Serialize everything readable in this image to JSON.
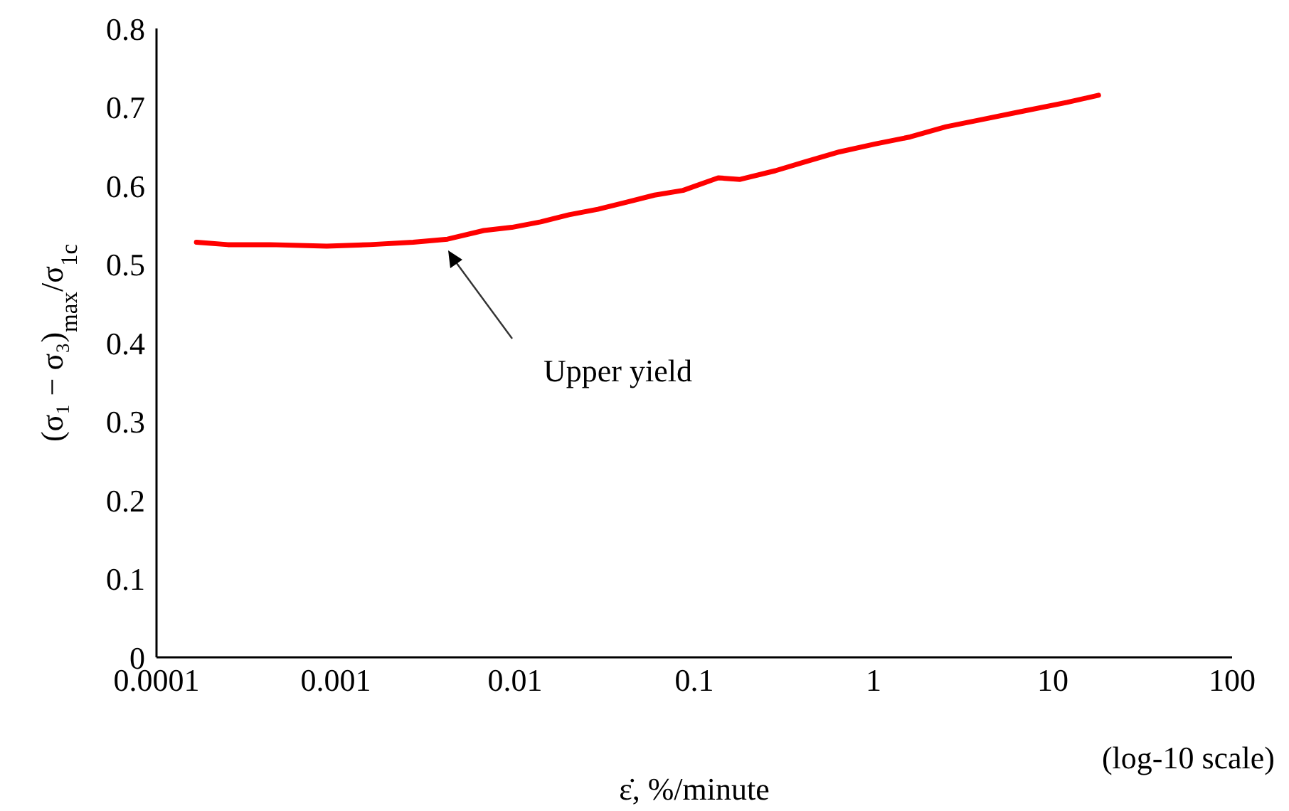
{
  "chart_data": {
    "type": "line",
    "xlabel": "ε̇, %/minute",
    "ylabel": "(σ₁ − σ₃)$_{max}$/σ$_{1c}$",
    "annotations": [
      "Upper yield",
      "(log-10 scale)"
    ],
    "x": [
      0.000167,
      0.00025,
      0.00043,
      0.00089,
      0.00155,
      0.0027,
      0.0042,
      0.0067,
      0.0096,
      0.0139,
      0.02,
      0.029,
      0.042,
      0.06,
      0.0865,
      0.136,
      0.18,
      0.283,
      0.41,
      0.645,
      1.02,
      1.6,
      2.54,
      4.0,
      6.9,
      12.0,
      18.0
    ],
    "series": [
      {
        "color": "#ff0000",
        "values": [
          0.528,
          0.525,
          0.525,
          0.523,
          0.525,
          0.528,
          0.532,
          0.543,
          0.547,
          0.554,
          0.563,
          0.57,
          0.579,
          0.588,
          0.594,
          0.61,
          0.608,
          0.619,
          0.63,
          0.643,
          0.653,
          0.662,
          0.675,
          0.684,
          0.695,
          0.706,
          0.715
        ]
      }
    ],
    "xlim": [
      0.0001,
      100
    ],
    "xticks": [
      0.0001,
      0.001,
      0.01,
      0.1,
      1,
      10,
      100
    ],
    "ylim": [
      0,
      0.8
    ],
    "yticks": [
      0,
      0.1,
      0.2,
      0.3,
      0.4,
      0.5,
      0.6,
      0.7,
      0.8
    ],
    "log": "x",
    "marker": "none",
    "line_style": "solid"
  }
}
